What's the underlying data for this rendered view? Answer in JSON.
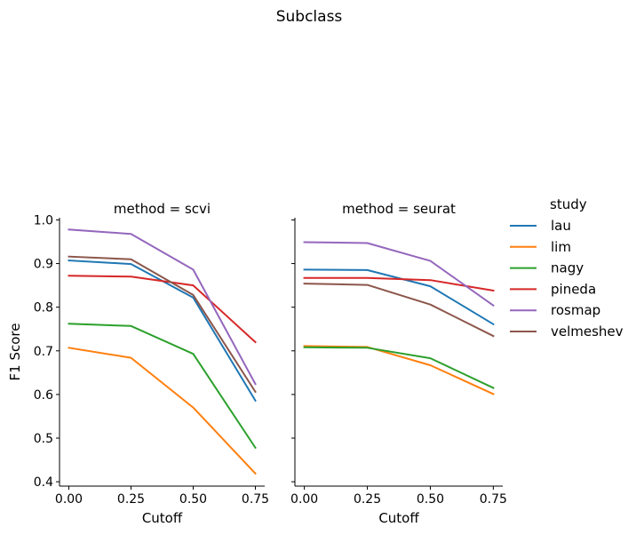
{
  "chart_data": {
    "type": "line",
    "title": "Subclass",
    "xlabel": "Cutoff",
    "ylabel": "F1 Score",
    "x": [
      0.0,
      0.25,
      0.5,
      0.75
    ],
    "x_ticks": [
      "0.00",
      "0.25",
      "0.50",
      "0.75"
    ],
    "y_ticks": [
      "0.4",
      "0.5",
      "0.6",
      "0.7",
      "0.8",
      "0.9",
      "1.0"
    ],
    "xlim": [
      -0.0375,
      0.7875
    ],
    "ylim": [
      0.39,
      1.005
    ],
    "legend": {
      "title": "study",
      "placement": "right"
    },
    "colors": {
      "lau": "#1f77b4",
      "lim": "#ff7f0e",
      "nagy": "#2ca02c",
      "pineda": "#d62728",
      "rosmap": "#9467bd",
      "velmeshev": "#8c564b"
    },
    "panels": [
      {
        "title": "method = scvi",
        "series": [
          {
            "name": "lau",
            "values": [
              0.907,
              0.899,
              0.822,
              0.586
            ]
          },
          {
            "name": "lim",
            "values": [
              0.707,
              0.684,
              0.57,
              0.419
            ]
          },
          {
            "name": "nagy",
            "values": [
              0.762,
              0.757,
              0.693,
              0.478
            ]
          },
          {
            "name": "pineda",
            "values": [
              0.872,
              0.87,
              0.85,
              0.72
            ]
          },
          {
            "name": "rosmap",
            "values": [
              0.978,
              0.968,
              0.886,
              0.624
            ]
          },
          {
            "name": "velmeshev",
            "values": [
              0.916,
              0.91,
              0.828,
              0.606
            ]
          }
        ]
      },
      {
        "title": "method = seurat",
        "series": [
          {
            "name": "lau",
            "values": [
              0.886,
              0.885,
              0.848,
              0.761
            ]
          },
          {
            "name": "lim",
            "values": [
              0.711,
              0.709,
              0.667,
              0.601
            ]
          },
          {
            "name": "nagy",
            "values": [
              0.708,
              0.707,
              0.683,
              0.615
            ]
          },
          {
            "name": "pineda",
            "values": [
              0.867,
              0.867,
              0.862,
              0.838
            ]
          },
          {
            "name": "rosmap",
            "values": [
              0.949,
              0.947,
              0.906,
              0.804
            ]
          },
          {
            "name": "velmeshev",
            "values": [
              0.854,
              0.851,
              0.806,
              0.734
            ]
          }
        ]
      }
    ]
  }
}
